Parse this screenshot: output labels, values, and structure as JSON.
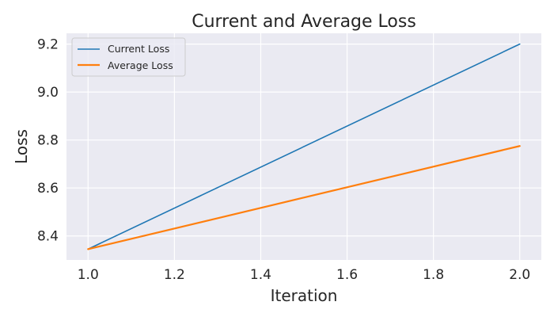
{
  "chart_data": {
    "type": "line",
    "title": "Current and Average Loss",
    "xlabel": "Iteration",
    "ylabel": "Loss",
    "xlim": [
      0.95,
      2.05
    ],
    "ylim": [
      8.3,
      9.245
    ],
    "x_ticks": [
      "1.0",
      "1.2",
      "1.4",
      "1.6",
      "1.8",
      "2.0"
    ],
    "y_ticks": [
      "8.4",
      "8.6",
      "8.8",
      "9.0",
      "9.2"
    ],
    "grid": true,
    "legend_position": "top-left",
    "series": [
      {
        "name": "Current Loss",
        "color": "#1f77b4",
        "x": [
          1.0,
          2.0
        ],
        "y": [
          8.345,
          9.2
        ]
      },
      {
        "name": "Average Loss",
        "color": "#ff7f0e",
        "x": [
          1.0,
          2.0
        ],
        "y": [
          8.345,
          8.775
        ]
      }
    ]
  }
}
